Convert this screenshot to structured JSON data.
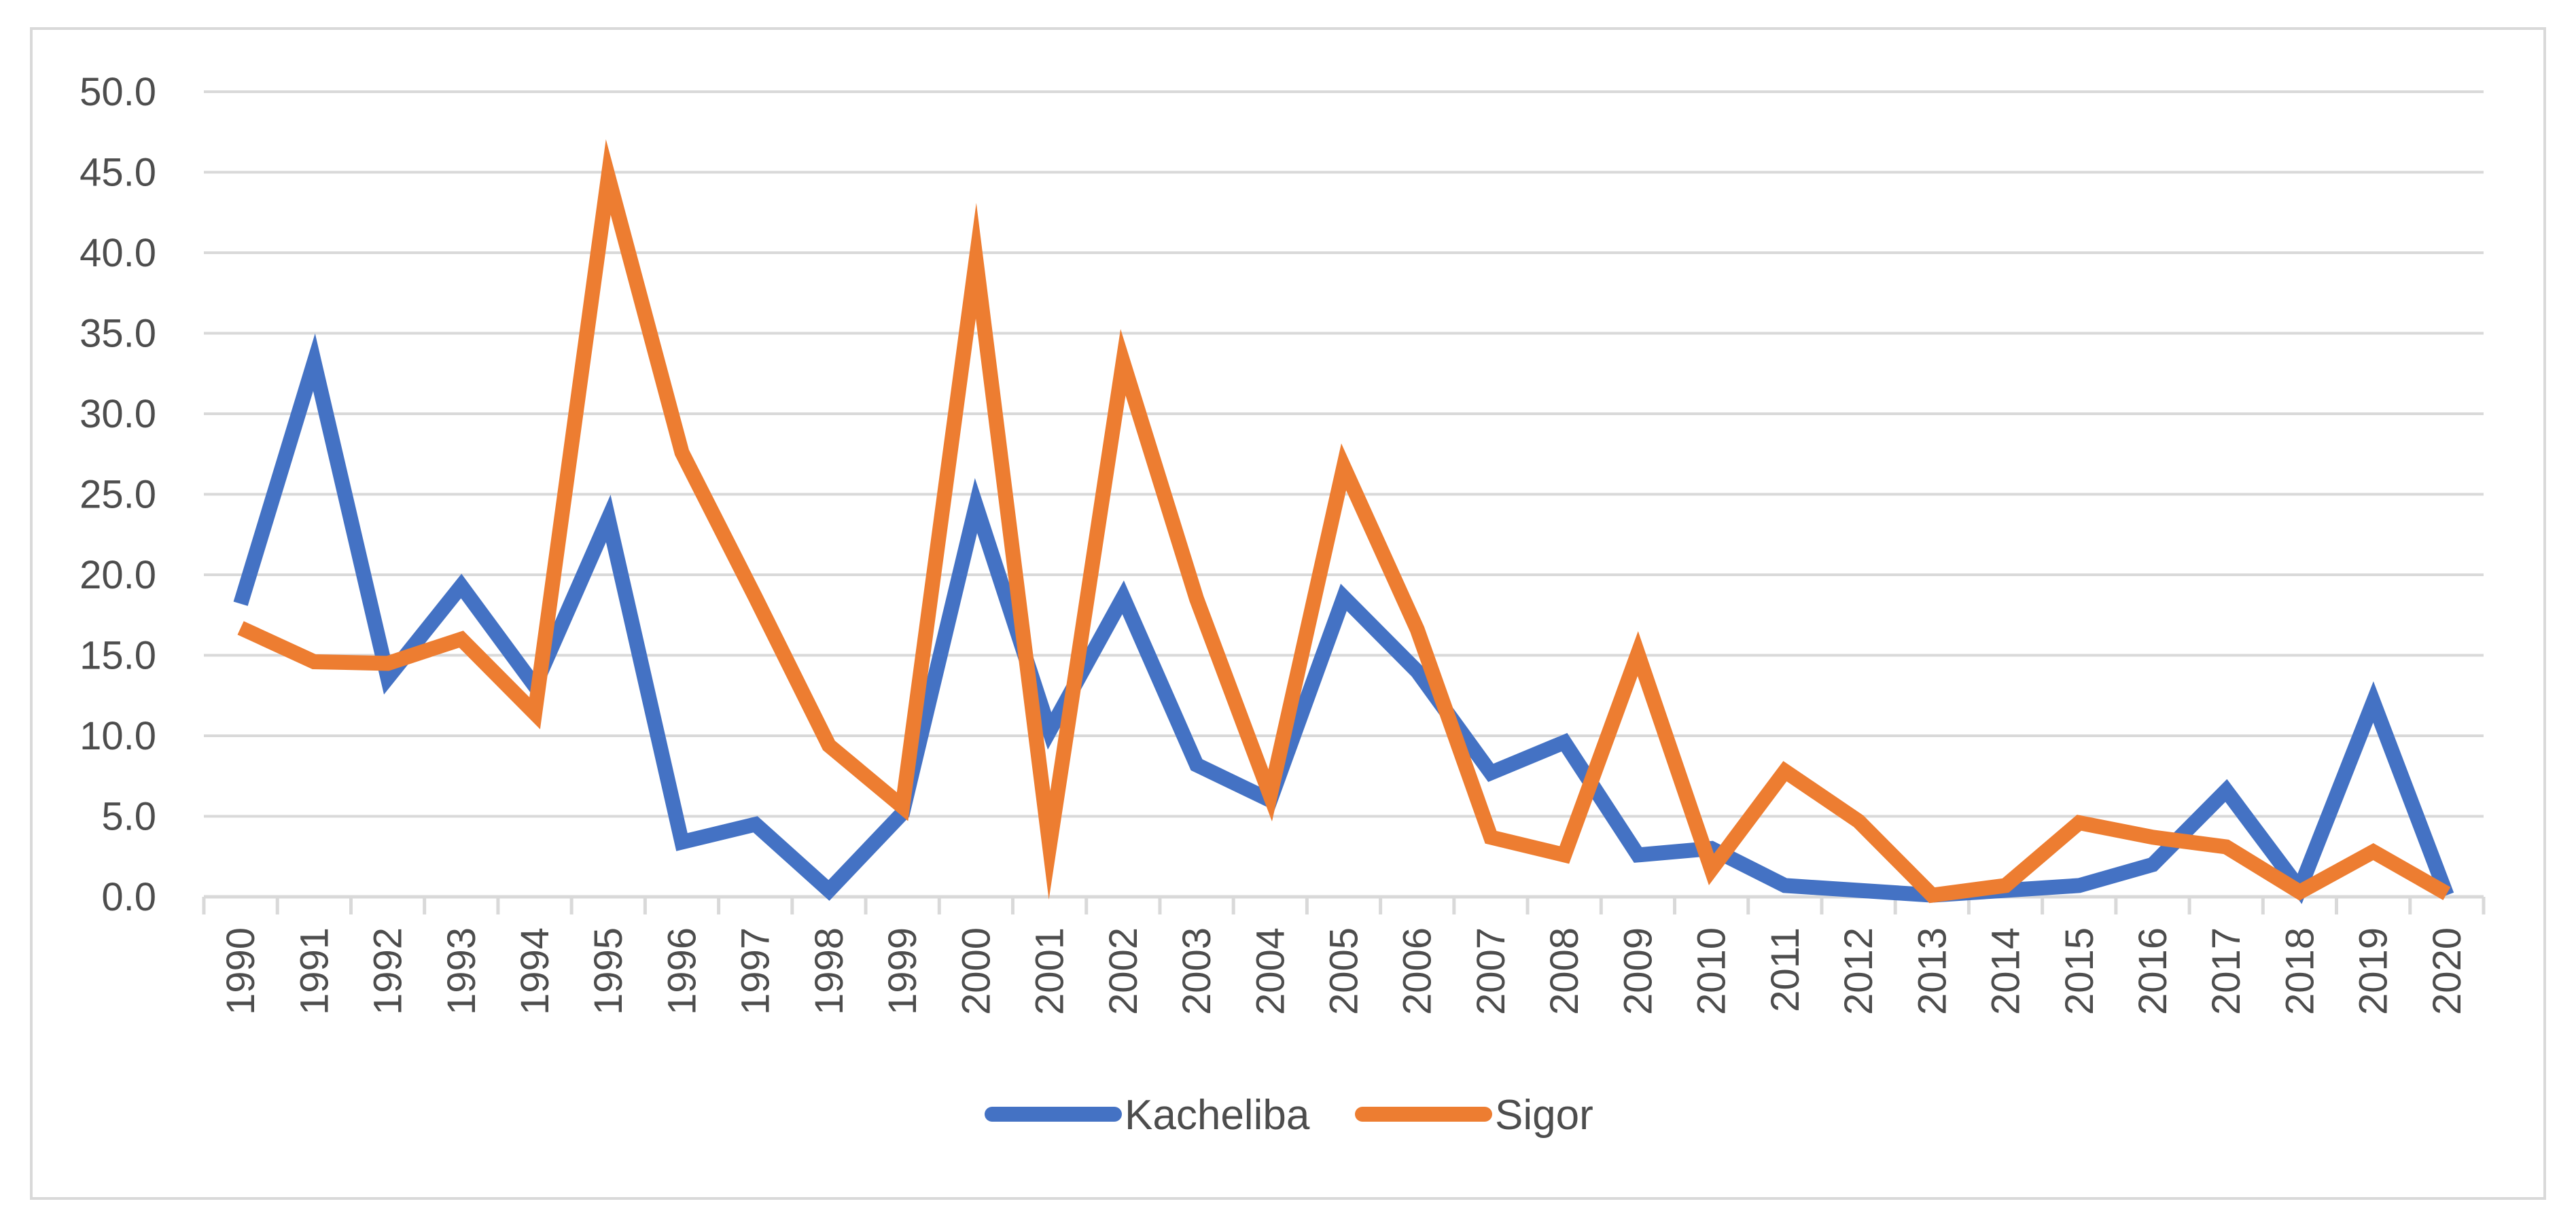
{
  "chart_data": {
    "type": "line",
    "title": "",
    "xlabel": "",
    "ylabel": "",
    "ylim": [
      0,
      50
    ],
    "y_ticks": [
      "0.0",
      "5.0",
      "10.0",
      "15.0",
      "20.0",
      "25.0",
      "30.0",
      "35.0",
      "40.0",
      "45.0",
      "50.0"
    ],
    "grid": true,
    "legend_position": "bottom",
    "categories": [
      "1990",
      "1991",
      "1992",
      "1993",
      "1994",
      "1995",
      "1996",
      "1997",
      "1998",
      "1999",
      "2000",
      "2001",
      "2002",
      "2003",
      "2004",
      "2005",
      "2006",
      "2007",
      "2008",
      "2009",
      "2010",
      "2011",
      "2012",
      "2013",
      "2014",
      "2015",
      "2016",
      "2017",
      "2018",
      "2019",
      "2020"
    ],
    "series": [
      {
        "name": "Kacheliba",
        "color": "#4472C4",
        "values": [
          18.2,
          33.2,
          13.6,
          19.3,
          13.1,
          23.5,
          3.4,
          4.5,
          0.4,
          5.2,
          24.3,
          10.3,
          18.6,
          8.2,
          6.0,
          18.6,
          14.0,
          7.7,
          9.6,
          2.6,
          3.0,
          0.7,
          0.4,
          0.1,
          0.4,
          0.7,
          2.0,
          6.6,
          0.5,
          12.1,
          0.1
        ]
      },
      {
        "name": "Sigor",
        "color": "#ED7D31",
        "values": [
          16.7,
          14.6,
          14.5,
          16.0,
          11.4,
          44.7,
          27.6,
          18.6,
          9.4,
          5.6,
          39.5,
          3.2,
          33.2,
          18.5,
          6.3,
          26.7,
          16.6,
          3.7,
          2.6,
          15.1,
          1.7,
          7.8,
          4.7,
          0.1,
          0.7,
          4.6,
          3.7,
          3.1,
          0.3,
          2.8,
          0.2
        ]
      }
    ]
  }
}
